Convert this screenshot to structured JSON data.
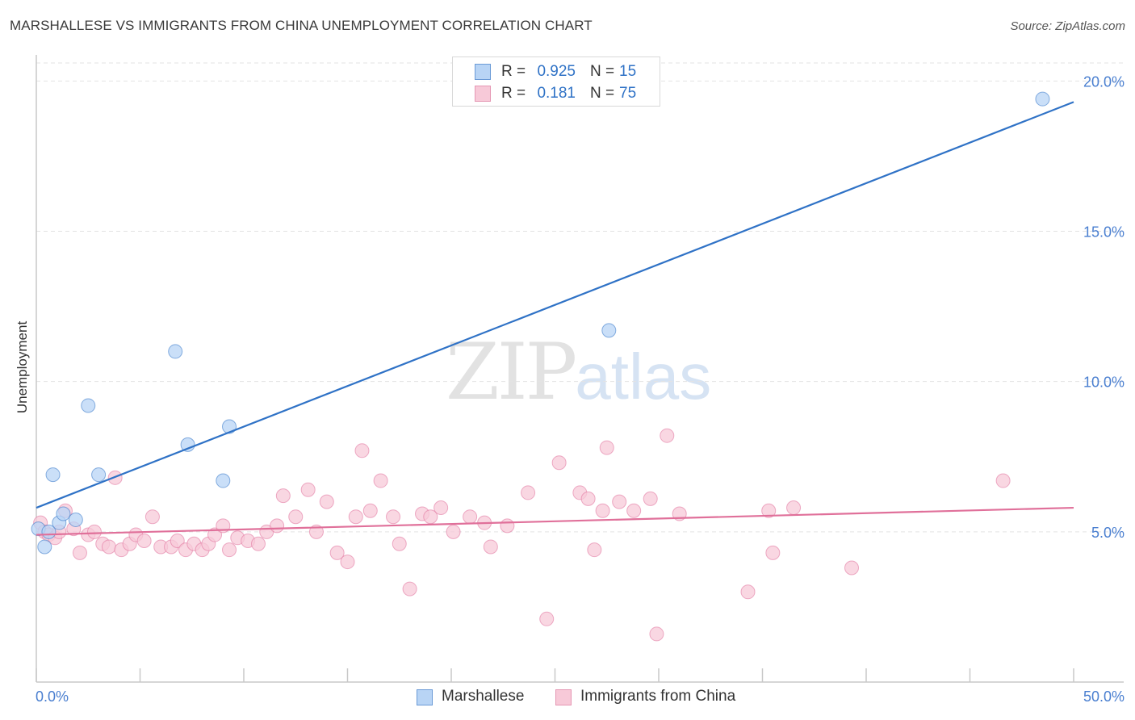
{
  "title": "MARSHALLESE VS IMMIGRANTS FROM CHINA UNEMPLOYMENT CORRELATION CHART",
  "source": "Source: ZipAtlas.com",
  "watermark": {
    "zip": "ZIP",
    "atlas": "atlas"
  },
  "legend": {
    "rows": [
      {
        "r_label": "R =",
        "r_value": "0.925",
        "n_label": "N =",
        "n_value": "15"
      },
      {
        "r_label": "R =",
        "r_value": "0.181",
        "n_label": "N =",
        "n_value": "75"
      }
    ]
  },
  "bottom_legend": [
    "Marshallese",
    "Immigrants from China"
  ],
  "chart_data": {
    "type": "scatter",
    "title": "MARSHALLESE VS IMMIGRANTS FROM CHINA UNEMPLOYMENT CORRELATION CHART",
    "xlabel": "",
    "ylabel": "Unemployment",
    "xlim": [
      0,
      50
    ],
    "ylim": [
      0,
      20.6
    ],
    "x_tick_labels": [
      "0.0%",
      "50.0%"
    ],
    "y_ticks": [
      5,
      10,
      15,
      20
    ],
    "y_tick_labels": [
      "5.0%",
      "10.0%",
      "15.0%",
      "20.0%"
    ],
    "grid": "horizontal dashed",
    "legend_position": "top-center",
    "colors": {
      "Marshallese": "#2f72c6",
      "Immigrants from China": "#e0709a"
    },
    "series": [
      {
        "name": "Marshallese",
        "color": "#2f72c6",
        "fill": "#b8d4f5",
        "x": [
          0.1,
          0.4,
          0.6,
          0.8,
          1.1,
          1.3,
          1.9,
          2.5,
          3.0,
          6.7,
          7.3,
          9.0,
          9.3,
          27.6,
          48.5
        ],
        "y": [
          5.1,
          4.5,
          5.0,
          6.9,
          5.3,
          5.6,
          5.4,
          9.2,
          6.9,
          11.0,
          7.9,
          6.7,
          8.5,
          11.7,
          19.4
        ],
        "trend": {
          "x": [
            0,
            50
          ],
          "y": [
            5.8,
            19.3
          ]
        }
      },
      {
        "name": "Immigrants from China",
        "color": "#e0709a",
        "fill": "#f7c9d8",
        "x": [
          0.2,
          0.4,
          0.6,
          0.9,
          1.1,
          1.4,
          1.8,
          2.1,
          2.5,
          2.8,
          3.2,
          3.5,
          3.8,
          4.1,
          4.5,
          4.8,
          5.2,
          5.6,
          6.0,
          6.5,
          6.8,
          7.2,
          7.6,
          8.0,
          8.3,
          8.6,
          9.0,
          9.3,
          9.7,
          10.2,
          10.7,
          11.1,
          11.6,
          11.9,
          12.5,
          13.1,
          13.5,
          14.0,
          14.5,
          15.0,
          15.4,
          15.7,
          16.1,
          16.6,
          17.2,
          17.5,
          18.0,
          18.6,
          19.0,
          19.5,
          20.1,
          20.9,
          21.6,
          21.9,
          22.7,
          23.7,
          24.6,
          25.2,
          26.2,
          26.6,
          26.9,
          27.3,
          27.5,
          28.1,
          28.8,
          29.6,
          29.9,
          30.4,
          31.0,
          34.3,
          35.3,
          35.5,
          36.5,
          39.3,
          46.6
        ],
        "y": [
          5.3,
          5.0,
          4.9,
          4.8,
          5.0,
          5.7,
          5.1,
          4.3,
          4.9,
          5.0,
          4.6,
          4.5,
          6.8,
          4.4,
          4.6,
          4.9,
          4.7,
          5.5,
          4.5,
          4.5,
          4.7,
          4.4,
          4.6,
          4.4,
          4.6,
          4.9,
          5.2,
          4.4,
          4.8,
          4.7,
          4.6,
          5.0,
          5.2,
          6.2,
          5.5,
          6.4,
          5.0,
          6.0,
          4.3,
          4.0,
          5.5,
          7.7,
          5.7,
          6.7,
          5.5,
          4.6,
          3.1,
          5.6,
          5.5,
          5.8,
          5.0,
          5.5,
          5.3,
          4.5,
          5.2,
          6.3,
          2.1,
          7.3,
          6.3,
          6.1,
          4.4,
          5.7,
          7.8,
          6.0,
          5.7,
          6.1,
          1.6,
          8.2,
          5.6,
          3.0,
          5.7,
          4.3,
          5.8,
          3.8,
          6.7
        ],
        "trend": {
          "x": [
            0,
            50
          ],
          "y": [
            4.9,
            5.8
          ]
        }
      }
    ]
  }
}
